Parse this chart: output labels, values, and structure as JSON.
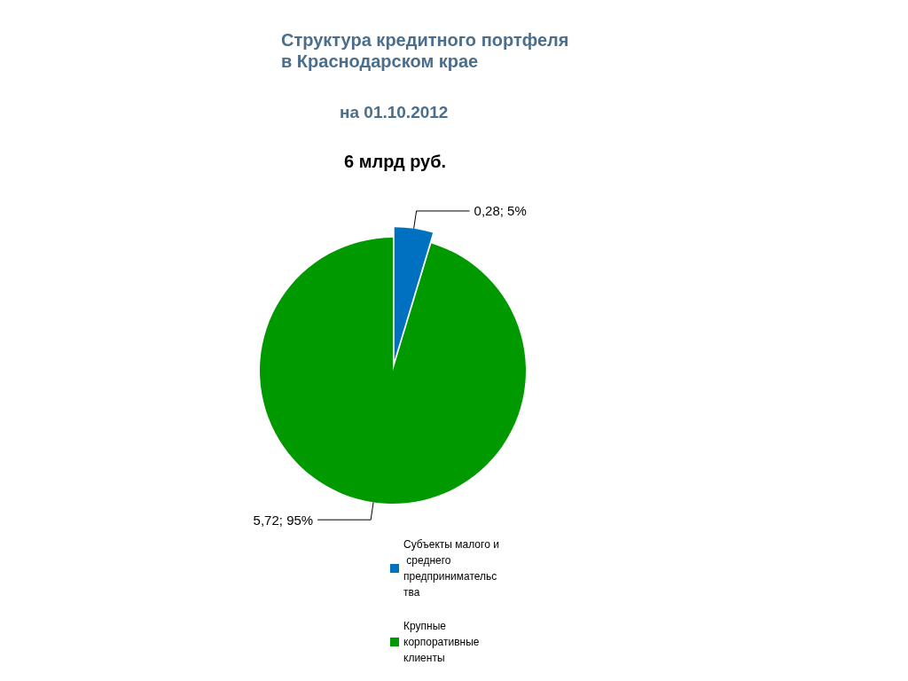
{
  "chart_data": {
    "type": "pie",
    "title": "Структура кредитного портфеля в Краснодарском крае",
    "subtitle": "на 01.10.2012",
    "annotations": [
      "6 млрд руб."
    ],
    "categories": [
      "Субъекты малого и среднего предпринимательства",
      "Крупные корпоративные клиенты"
    ],
    "values": [
      0.28,
      5.72
    ],
    "value_labels": [
      "0,28; 5%",
      "5,72; 95%"
    ],
    "colors": [
      "#0070c0",
      "#009900"
    ],
    "legend": "bottom"
  }
}
